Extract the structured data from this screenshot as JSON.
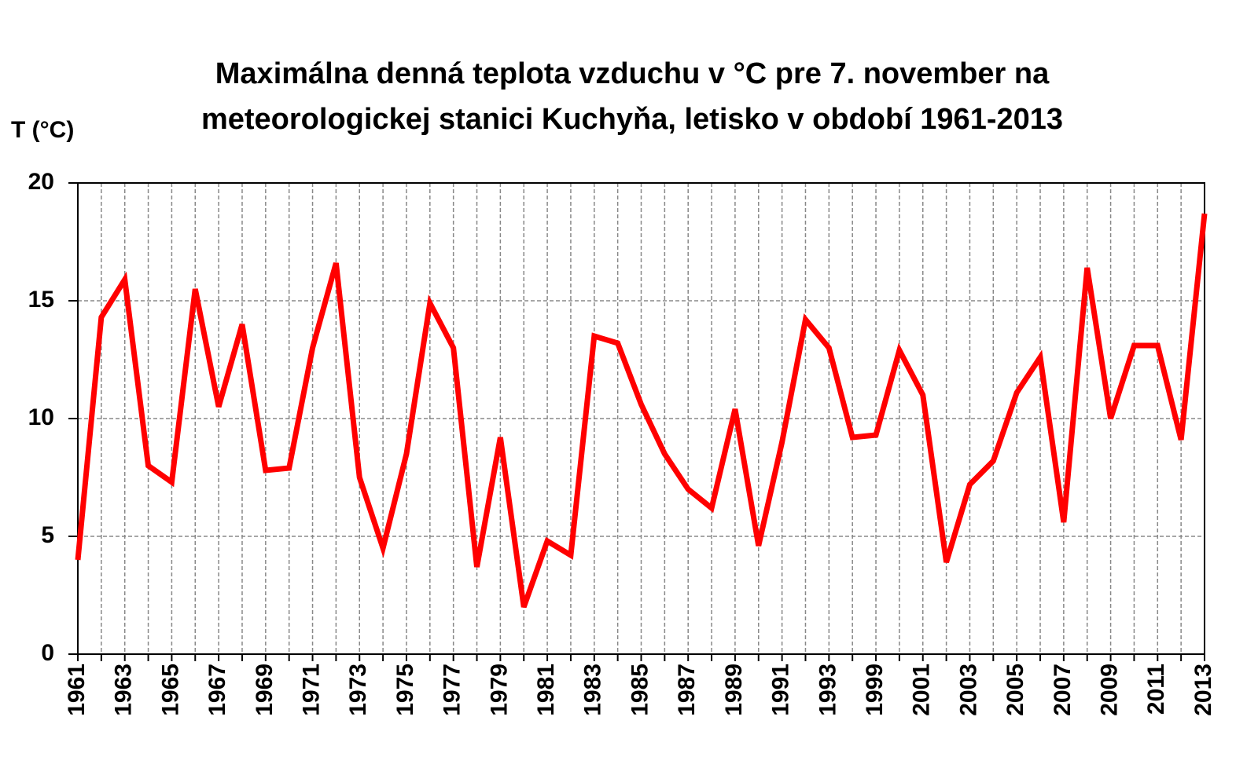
{
  "chart_data": {
    "type": "line",
    "title": [
      "Maximálna denná teplota vzduchu v °C pre 7. november na",
      "meteorologickej stanici Kuchyňa, letisko v období 1961-2013"
    ],
    "y_label": "T (°C)",
    "categories": [
      "1961",
      null,
      "1963",
      null,
      "1965",
      null,
      "1967",
      null,
      "1969",
      null,
      "1971",
      null,
      "1973",
      null,
      "1975",
      null,
      "1977",
      null,
      "1979",
      null,
      "1981",
      null,
      "1983",
      null,
      "1985",
      null,
      "1987",
      null,
      "1989",
      null,
      "1991",
      null,
      "1993",
      null,
      "1999",
      null,
      "2001",
      null,
      "2003",
      null,
      "2005",
      null,
      "2007",
      null,
      "2009",
      null,
      "2011",
      null,
      "2013"
    ],
    "series": [
      {
        "name": "T",
        "color": "#ff0000",
        "values": [
          4.0,
          14.3,
          15.9,
          8.0,
          7.3,
          15.5,
          10.5,
          14.0,
          7.8,
          7.9,
          13.0,
          16.6,
          7.5,
          4.5,
          8.5,
          14.9,
          13.0,
          3.7,
          9.2,
          2.0,
          4.8,
          4.2,
          13.5,
          13.2,
          10.6,
          8.5,
          7.0,
          6.2,
          10.4,
          4.6,
          9.0,
          14.2,
          13.0,
          9.2,
          9.3,
          12.9,
          11.0,
          3.9,
          7.2,
          8.2,
          11.1,
          12.6,
          5.6,
          16.4,
          10.0,
          13.1,
          13.1,
          9.1,
          18.7
        ]
      }
    ],
    "ylim": [
      0,
      20
    ],
    "yticks": [
      0,
      5,
      10,
      15,
      20
    ],
    "grid": true
  }
}
